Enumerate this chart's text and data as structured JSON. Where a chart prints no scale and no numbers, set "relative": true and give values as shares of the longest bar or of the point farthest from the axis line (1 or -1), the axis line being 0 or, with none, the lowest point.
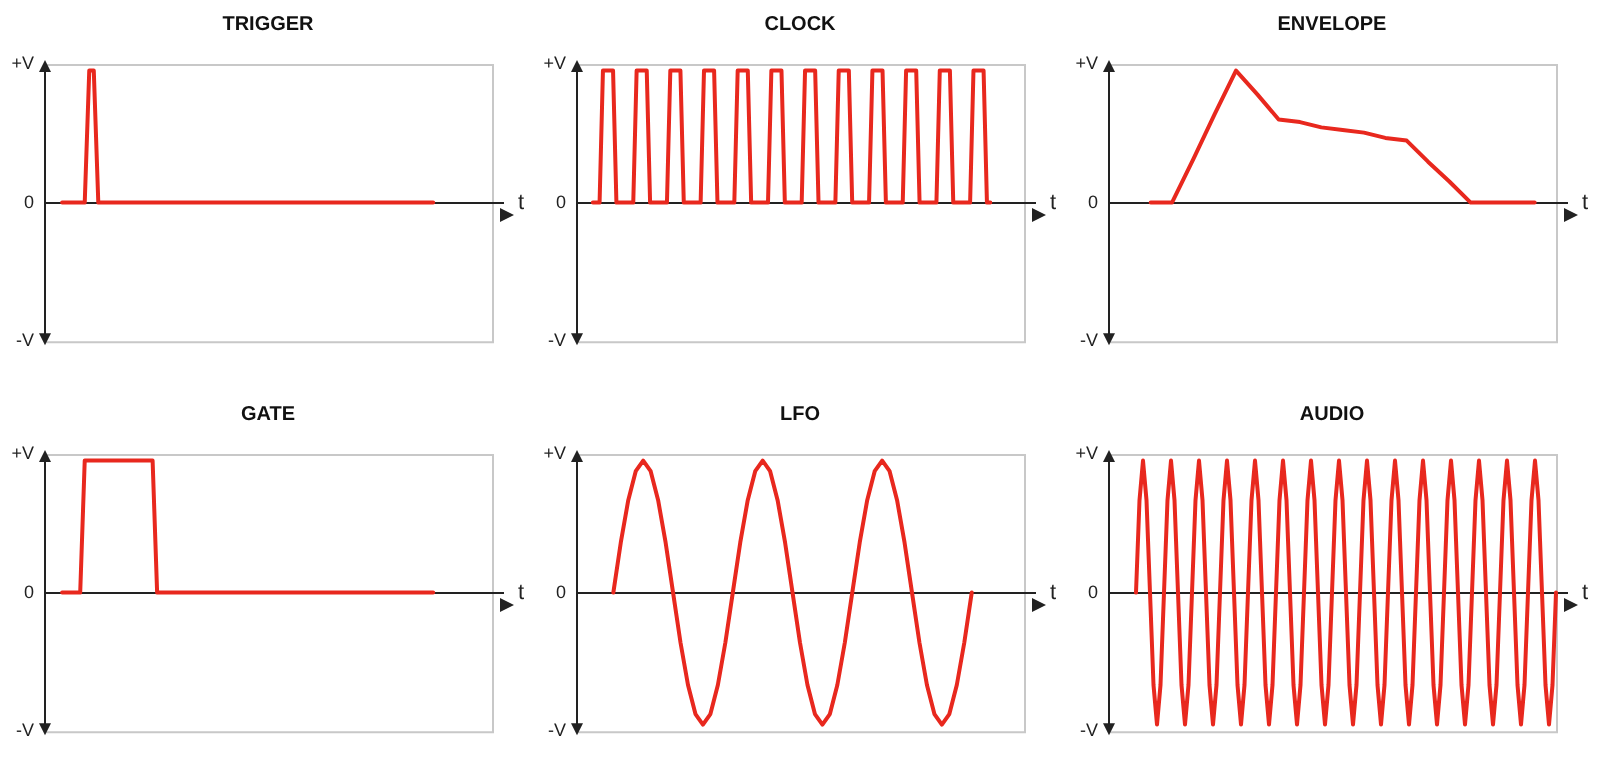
{
  "chart_data": [
    {
      "type": "line",
      "title": "TRIGGER",
      "xlabel": "t",
      "annotations": [
        "+V",
        "0",
        "-V"
      ],
      "relative": true,
      "marker": "none",
      "categories": [
        null,
        null,
        null,
        null,
        null,
        null,
        null,
        null,
        null,
        null,
        null,
        null,
        null,
        null,
        null,
        null,
        null,
        null,
        null,
        null,
        null,
        null,
        null,
        null,
        null,
        null,
        null,
        null,
        null,
        null,
        null,
        null,
        null,
        null,
        null,
        null,
        null,
        null,
        null,
        null,
        null,
        null,
        null,
        null,
        null,
        null,
        null,
        null,
        null,
        null,
        null,
        null,
        null,
        null,
        null,
        null,
        null,
        null,
        null,
        null,
        null,
        null,
        null,
        null,
        null,
        null,
        null,
        null,
        null,
        null,
        null,
        null,
        null,
        null,
        null,
        null,
        null,
        null,
        null,
        null,
        null,
        null,
        null,
        null,
        null,
        null,
        null,
        null,
        null,
        null,
        null,
        null,
        null,
        null,
        null,
        null,
        null,
        null,
        null,
        null
      ],
      "series": [
        {
          "color": "#e8281e",
          "values": [
            null,
            null,
            null,
            null,
            0,
            0,
            0,
            0,
            0,
            0,
            1,
            1,
            0,
            0,
            0,
            0,
            0,
            0,
            0,
            0,
            0,
            0,
            0,
            0,
            0,
            0,
            0,
            0,
            0,
            0,
            0,
            0,
            0,
            0,
            0,
            0,
            0,
            0,
            0,
            0,
            0,
            0,
            0,
            0,
            0,
            0,
            0,
            0,
            0,
            0,
            0,
            0,
            0,
            0,
            0,
            0,
            0,
            0,
            0,
            0,
            0,
            0,
            0,
            0,
            0,
            0,
            0,
            0,
            0,
            0,
            0,
            0,
            0,
            0,
            0,
            0,
            0,
            0,
            0,
            0,
            0,
            0,
            0,
            0,
            0,
            0,
            0,
            null,
            null,
            null,
            null,
            null,
            null,
            null,
            null,
            null,
            null,
            null,
            null,
            null
          ]
        }
      ]
    },
    {
      "type": "line",
      "title": "CLOCK",
      "xlabel": "t",
      "annotations": [
        "+V",
        "0",
        "-V"
      ],
      "relative": true,
      "marker": "none",
      "categories": [
        null,
        null,
        null,
        null,
        null,
        null,
        null,
        null,
        null,
        null,
        null,
        null,
        null,
        null,
        null,
        null,
        null,
        null,
        null,
        null,
        null,
        null,
        null,
        null,
        null,
        null,
        null,
        null,
        null,
        null,
        null,
        null,
        null,
        null,
        null,
        null,
        null,
        null,
        null,
        null,
        null,
        null,
        null,
        null,
        null,
        null,
        null,
        null,
        null,
        null,
        null,
        null,
        null,
        null,
        null,
        null,
        null,
        null,
        null,
        null,
        null,
        null,
        null,
        null,
        null,
        null,
        null,
        null,
        null,
        null,
        null,
        null,
        null,
        null,
        null,
        null,
        null,
        null,
        null,
        null,
        null,
        null,
        null,
        null,
        null,
        null,
        null,
        null,
        null,
        null,
        null,
        null,
        null,
        null,
        null,
        null,
        null,
        null,
        null,
        null,
        null,
        null,
        null,
        null,
        null,
        null,
        null,
        null,
        null,
        null,
        null,
        null,
        null,
        null,
        null,
        null,
        null,
        null,
        null,
        null,
        null,
        null,
        null,
        null,
        null,
        null,
        null,
        null,
        null,
        null,
        null,
        null,
        null,
        null
      ],
      "series": [
        {
          "color": "#e8281e",
          "values": [
            null,
            null,
            null,
            null,
            null,
            0,
            0,
            0,
            1,
            1,
            1,
            1,
            0,
            0,
            0,
            0,
            0,
            0,
            1,
            1,
            1,
            1,
            0,
            0,
            0,
            0,
            0,
            0,
            1,
            1,
            1,
            1,
            0,
            0,
            0,
            0,
            0,
            0,
            1,
            1,
            1,
            1,
            0,
            0,
            0,
            0,
            0,
            0,
            1,
            1,
            1,
            1,
            0,
            0,
            0,
            0,
            0,
            0,
            1,
            1,
            1,
            1,
            0,
            0,
            0,
            0,
            0,
            0,
            1,
            1,
            1,
            1,
            0,
            0,
            0,
            0,
            0,
            0,
            1,
            1,
            1,
            1,
            0,
            0,
            0,
            0,
            0,
            0,
            1,
            1,
            1,
            1,
            0,
            0,
            0,
            0,
            0,
            0,
            1,
            1,
            1,
            1,
            0,
            0,
            0,
            0,
            0,
            0,
            1,
            1,
            1,
            1,
            0,
            0,
            0,
            0,
            0,
            0,
            1,
            1,
            1,
            1,
            0,
            0,
            null,
            null,
            null,
            null,
            null,
            null,
            null,
            null,
            null,
            null
          ]
        }
      ]
    },
    {
      "type": "line",
      "title": "ENVELOPE",
      "xlabel": "t",
      "annotations": [
        "+V",
        "0",
        "-V"
      ],
      "relative": true,
      "marker": "none",
      "categories": [
        null,
        null,
        null,
        null,
        null,
        null,
        null,
        null,
        null,
        null,
        null,
        null,
        null,
        null,
        null,
        null,
        null,
        null,
        null,
        null,
        null,
        null
      ],
      "series": [
        {
          "color": "#e8281e",
          "values": [
            null,
            null,
            0,
            0,
            0.33,
            0.67,
            1,
            0.82,
            0.63,
            0.61,
            0.57,
            0.55,
            0.53,
            0.49,
            0.47,
            0.31,
            0.16,
            0,
            0,
            0,
            0,
            null
          ]
        }
      ]
    },
    {
      "type": "line",
      "title": "GATE",
      "xlabel": "t",
      "annotations": [
        "+V",
        "0",
        "-V"
      ],
      "relative": true,
      "marker": "none",
      "categories": [
        null,
        null,
        null,
        null,
        null,
        null,
        null,
        null,
        null,
        null,
        null,
        null,
        null,
        null,
        null,
        null,
        null,
        null,
        null,
        null,
        null,
        null,
        null,
        null,
        null,
        null,
        null,
        null,
        null,
        null,
        null,
        null,
        null,
        null,
        null,
        null,
        null,
        null,
        null,
        null,
        null,
        null,
        null,
        null,
        null,
        null,
        null,
        null,
        null,
        null,
        null,
        null,
        null,
        null,
        null,
        null,
        null,
        null,
        null,
        null,
        null,
        null,
        null,
        null,
        null,
        null,
        null,
        null,
        null,
        null,
        null,
        null,
        null,
        null,
        null,
        null,
        null,
        null,
        null,
        null,
        null,
        null,
        null,
        null,
        null,
        null,
        null,
        null,
        null,
        null,
        null,
        null,
        null,
        null,
        null,
        null,
        null,
        null,
        null,
        null
      ],
      "series": [
        {
          "color": "#e8281e",
          "values": [
            null,
            null,
            null,
            null,
            0,
            0,
            0,
            0,
            0,
            1,
            1,
            1,
            1,
            1,
            1,
            1,
            1,
            1,
            1,
            1,
            1,
            1,
            1,
            1,
            1,
            0,
            0,
            0,
            0,
            0,
            0,
            0,
            0,
            0,
            0,
            0,
            0,
            0,
            0,
            0,
            0,
            0,
            0,
            0,
            0,
            0,
            0,
            0,
            0,
            0,
            0,
            0,
            0,
            0,
            0,
            0,
            0,
            0,
            0,
            0,
            0,
            0,
            0,
            0,
            0,
            0,
            0,
            0,
            0,
            0,
            0,
            0,
            0,
            0,
            0,
            0,
            0,
            0,
            0,
            0,
            0,
            0,
            0,
            0,
            0,
            0,
            0,
            null,
            null,
            null,
            null,
            null,
            null,
            null,
            null,
            null,
            null,
            null,
            null,
            null
          ]
        }
      ]
    },
    {
      "type": "line",
      "title": "LFO",
      "xlabel": "t",
      "annotations": [
        "+V",
        "0",
        "-V"
      ],
      "relative": true,
      "marker": "none",
      "categories": [
        null,
        null,
        null,
        null,
        null,
        null,
        null,
        null,
        null,
        null,
        null,
        null,
        null,
        null,
        null,
        null,
        null,
        null,
        null,
        null,
        null,
        null,
        null,
        null,
        null,
        null,
        null,
        null,
        null,
        null,
        null,
        null,
        null,
        null,
        null,
        null,
        null,
        null,
        null,
        null,
        null,
        null,
        null,
        null,
        null,
        null,
        null,
        null,
        null,
        null,
        null,
        null,
        null,
        null,
        null,
        null,
        null,
        null,
        null,
        null,
        null
      ],
      "series": [
        {
          "color": "#e8281e",
          "values": [
            null,
            null,
            null,
            null,
            null,
            0,
            0.38,
            0.7,
            0.92,
            1,
            0.92,
            0.7,
            0.38,
            0,
            -0.38,
            -0.7,
            -0.92,
            -1,
            -0.92,
            -0.7,
            -0.38,
            0,
            0.38,
            0.7,
            0.92,
            1,
            0.92,
            0.7,
            0.38,
            0,
            -0.38,
            -0.7,
            -0.92,
            -1,
            -0.92,
            -0.7,
            -0.38,
            0,
            0.38,
            0.7,
            0.92,
            1,
            0.92,
            0.7,
            0.38,
            0,
            -0.38,
            -0.7,
            -0.92,
            -1,
            -0.92,
            -0.7,
            -0.38,
            0,
            null,
            null,
            null,
            null,
            null,
            null,
            null
          ]
        }
      ]
    },
    {
      "type": "line",
      "title": "AUDIO",
      "xlabel": "t",
      "annotations": [
        "+V",
        "0",
        "-V"
      ],
      "relative": true,
      "marker": "none",
      "categories": [
        null,
        null,
        null,
        null,
        null,
        null,
        null,
        null,
        null,
        null,
        null,
        null,
        null,
        null,
        null,
        null,
        null,
        null,
        null,
        null,
        null,
        null,
        null,
        null,
        null,
        null,
        null,
        null,
        null,
        null,
        null,
        null,
        null,
        null,
        null,
        null,
        null,
        null,
        null,
        null,
        null,
        null,
        null,
        null,
        null,
        null,
        null,
        null,
        null,
        null,
        null,
        null,
        null,
        null,
        null,
        null,
        null,
        null,
        null,
        null,
        null,
        null,
        null,
        null,
        null,
        null,
        null,
        null,
        null,
        null,
        null,
        null,
        null,
        null,
        null,
        null,
        null,
        null,
        null,
        null,
        null,
        null,
        null,
        null,
        null,
        null,
        null,
        null,
        null,
        null,
        null,
        null,
        null,
        null,
        null,
        null,
        null,
        null,
        null,
        null,
        null,
        null,
        null,
        null,
        null,
        null,
        null,
        null,
        null,
        null,
        null,
        null,
        null,
        null,
        null,
        null,
        null,
        null,
        null,
        null,
        null,
        null,
        null,
        null,
        null,
        null,
        null,
        null,
        null
      ],
      "series": [
        {
          "color": "#e8281e",
          "values": [
            null,
            null,
            null,
            null,
            null,
            null,
            null,
            null,
            0,
            0.7,
            1,
            0.7,
            0,
            -0.7,
            -1,
            -0.7,
            0,
            0.7,
            1,
            0.7,
            0,
            -0.7,
            -1,
            -0.7,
            0,
            0.7,
            1,
            0.7,
            0,
            -0.7,
            -1,
            -0.7,
            0,
            0.7,
            1,
            0.7,
            0,
            -0.7,
            -1,
            -0.7,
            0,
            0.7,
            1,
            0.7,
            0,
            -0.7,
            -1,
            -0.7,
            0,
            0.7,
            1,
            0.7,
            0,
            -0.7,
            -1,
            -0.7,
            0,
            0.7,
            1,
            0.7,
            0,
            -0.7,
            -1,
            -0.7,
            0,
            0.7,
            1,
            0.7,
            0,
            -0.7,
            -1,
            -0.7,
            0,
            0.7,
            1,
            0.7,
            0,
            -0.7,
            -1,
            -0.7,
            0,
            0.7,
            1,
            0.7,
            0,
            -0.7,
            -1,
            -0.7,
            0,
            0.7,
            1,
            0.7,
            0,
            -0.7,
            -1,
            -0.7,
            0,
            0.7,
            1,
            0.7,
            0,
            -0.7,
            -1,
            -0.7,
            0,
            0.7,
            1,
            0.7,
            0,
            -0.7,
            -1,
            -0.7,
            0,
            0.7,
            1,
            0.7,
            0,
            -0.7,
            -1,
            -0.7,
            0,
            0.7,
            1,
            0.7,
            0,
            -0.7,
            -1,
            -0.7,
            0
          ]
        }
      ]
    }
  ]
}
